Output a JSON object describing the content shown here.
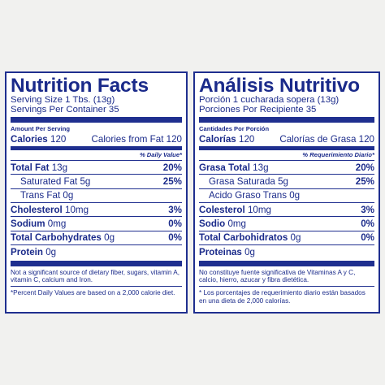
{
  "en": {
    "title": "Nutrition Facts",
    "serving_size": "Serving Size 1 Tbs. (13g)",
    "servings": "Servings Per Container 35",
    "amount_per_serving": "Amount Per Serving",
    "calories_label": "Calories",
    "calories_value": "120",
    "calories_fat": "Calories from Fat 120",
    "dv_header": "% Daily Value*",
    "total_fat_label": "Total Fat",
    "total_fat_value": "13g",
    "total_fat_pct": "20%",
    "sat_fat": "Saturated Fat 5g",
    "sat_fat_pct": "25%",
    "trans_fat": "Trans Fat 0g",
    "chol_label": "Cholesterol",
    "chol_value": "10mg",
    "chol_pct": "3%",
    "sodium_label": "Sodium",
    "sodium_value": "0mg",
    "sodium_pct": "0%",
    "carb_label": "Total Carbohydrates",
    "carb_value": "0g",
    "carb_pct": "0%",
    "protein_label": "Protein",
    "protein_value": "0g",
    "note1": "Not a significant source of dietary fiber, sugars, vitamin A, vitamin C, calcium and Iron.",
    "note2": "*Percent Daily Values are based on a 2,000 calorie diet."
  },
  "es": {
    "title": "Análisis Nutritivo",
    "serving_size": "Porción 1 cucharada sopera (13g)",
    "servings": "Porciones Por Recipiente 35",
    "amount_per_serving": "Cantidades Por Porción",
    "calories_label": "Calorías",
    "calories_value": "120",
    "calories_fat": "Calorías de Grasa 120",
    "dv_header": "% Requerimiento Diario*",
    "total_fat_label": "Grasa Total",
    "total_fat_value": "13g",
    "total_fat_pct": "20%",
    "sat_fat": "Grasa Saturada 5g",
    "sat_fat_pct": "25%",
    "trans_fat": "Acido Graso Trans 0g",
    "chol_label": "Colesterol",
    "chol_value": "10mg",
    "chol_pct": "3%",
    "sodium_label": "Sodio",
    "sodium_value": "0mg",
    "sodium_pct": "0%",
    "carb_label": "Total Carbohidratos",
    "carb_value": "0g",
    "carb_pct": "0%",
    "protein_label": "Proteinas",
    "protein_value": "0g",
    "note1": "No constituye fuente significativa de Vitaminas A y C, calcio, hierro, azucar y fibra dietética.",
    "note2": "* Los porcentajes de requerimiento diario están basados en una dieta de 2,000 calorías."
  },
  "colors": {
    "ink": "#1f2f8f",
    "panel": "#ffffff",
    "background": "#f1f1ef"
  }
}
